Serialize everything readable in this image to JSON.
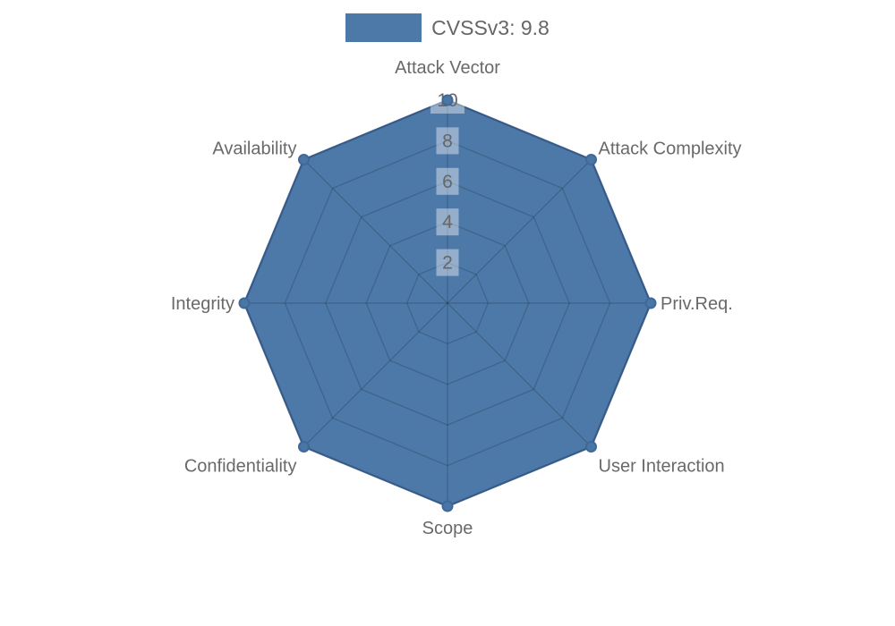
{
  "page": {
    "background": "#ffffff"
  },
  "chart_data": {
    "type": "radar",
    "title": "",
    "categories": [
      "Attack Vector",
      "Attack Complexity",
      "Priv.Req.",
      "User Interaction",
      "Scope",
      "Confidentiality",
      "Integrity",
      "Availability"
    ],
    "series": [
      {
        "name": "CVSSv3: 9.8",
        "values": [
          10,
          10,
          10,
          10,
          10,
          10,
          10,
          10
        ]
      }
    ],
    "ticks": [
      2,
      4,
      6,
      8,
      10
    ],
    "rmax": 10,
    "grid": true,
    "legend_position": "top",
    "colors": {
      "fill": "#4d79a8",
      "border": "#42699a",
      "point": "#4a76a4",
      "point_border": "#3e689a",
      "grid": "rgba(0,0,0,0.16)",
      "tick_backdrop": "rgba(255,255,255,0.40)",
      "tick_text": "#666666",
      "label_text": "#696969",
      "legend_text": "#666666"
    }
  }
}
